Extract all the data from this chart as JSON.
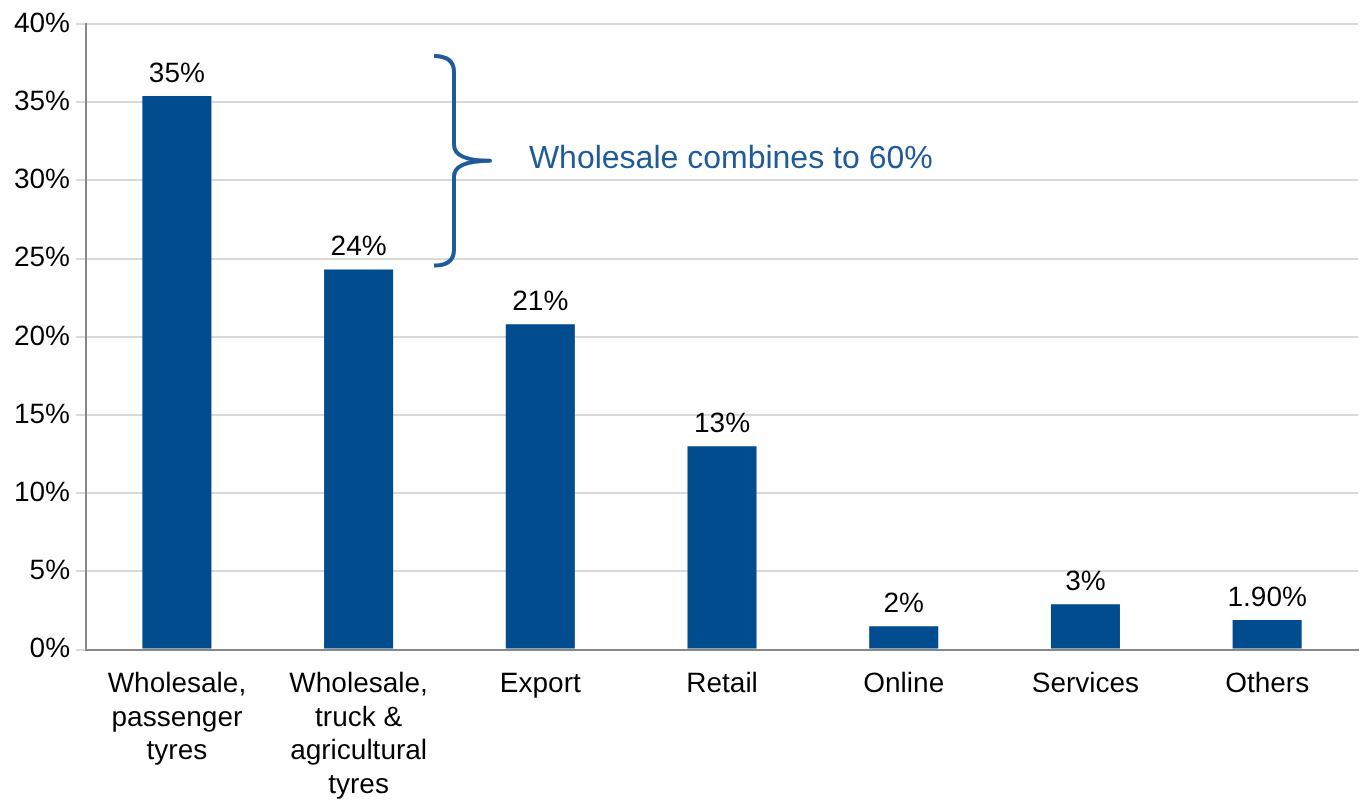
{
  "chart_data": {
    "type": "bar",
    "categories": [
      "Wholesale, passenger tyres",
      "Wholesale, truck & agricultural tyres",
      "Export",
      "Retail",
      "Online",
      "Services",
      "Others"
    ],
    "values": [
      35.4,
      24.3,
      20.8,
      13,
      1.5,
      2.9,
      1.9
    ],
    "value_labels": [
      "35%",
      "24%",
      "21%",
      "13%",
      "2%",
      "3%",
      "1.90%"
    ],
    "color": "#004c8f",
    "ylim": [
      0,
      40
    ],
    "yticks": [
      {
        "value": 0,
        "label": "0%"
      },
      {
        "value": 5,
        "label": "5%"
      },
      {
        "value": 10,
        "label": "10%"
      },
      {
        "value": 15,
        "label": "15%"
      },
      {
        "value": 20,
        "label": "20%"
      },
      {
        "value": 25,
        "label": "25%"
      },
      {
        "value": 30,
        "label": "30%"
      },
      {
        "value": 35,
        "label": "35%"
      },
      {
        "value": 40,
        "label": "40%"
      }
    ],
    "grid": "y",
    "annotations": [
      "Wholesale combines to 60%"
    ]
  }
}
